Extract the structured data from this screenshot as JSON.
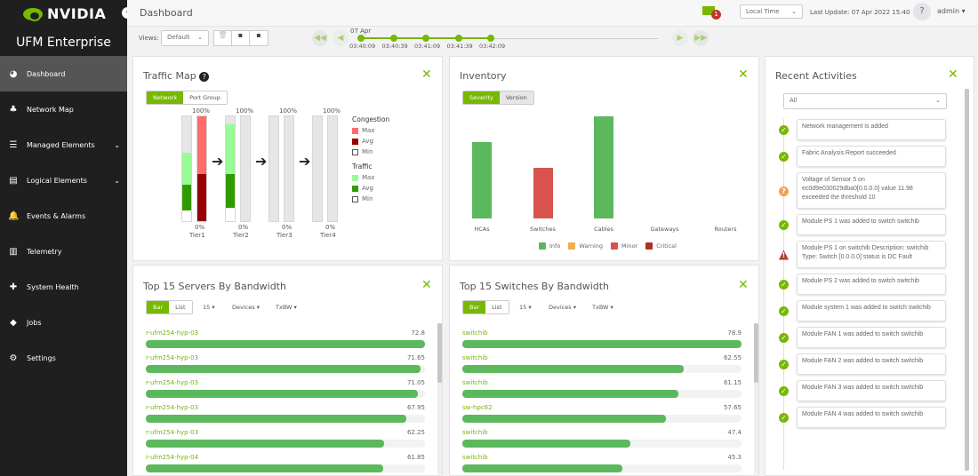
{
  "sidebar": {
    "brand": "NVIDIA",
    "product": "UFM Enterprise",
    "items": [
      {
        "label": "Dashboard",
        "icon": "gauge-icon",
        "active": true
      },
      {
        "label": "Network Map",
        "icon": "sitemap-icon"
      },
      {
        "label": "Managed Elements",
        "icon": "list-check-icon",
        "expandable": true
      },
      {
        "label": "Logical Elements",
        "icon": "server-icon",
        "expandable": true
      },
      {
        "label": "Events & Alarms",
        "icon": "bell-icon"
      },
      {
        "label": "Telemetry",
        "icon": "chart-bar-icon"
      },
      {
        "label": "System Health",
        "icon": "medkit-icon"
      },
      {
        "label": "Jobs",
        "icon": "cube-icon"
      },
      {
        "label": "Settings",
        "icon": "gear-icon"
      }
    ]
  },
  "header": {
    "title": "Dashboard",
    "mail_badge": "1",
    "time_mode": "Local Time",
    "last_update": "Last Update: 07 Apr 2022 15:40",
    "help": "?",
    "user": "admin"
  },
  "toolbar": {
    "views_label": "Views:",
    "views_value": "Default",
    "timeline_date": "07 Apr",
    "timeline_ticks": [
      "03:40:09",
      "03:40:39",
      "03:41:09",
      "03:41:39",
      "03:42:09"
    ]
  },
  "traffic_map": {
    "title": "Traffic Map",
    "tabs": [
      "Network",
      "Port Group"
    ],
    "active_tab": "Network",
    "tiers": [
      {
        "label": "Tier1",
        "top": "100%",
        "bottom": "0%",
        "traffic": {
          "min": 0.1,
          "avg": 0.35,
          "max": 0.65
        },
        "congestion": {
          "min": 0,
          "avg": 0.45,
          "max": 1.0
        }
      },
      {
        "label": "Tier2",
        "top": "100%",
        "bottom": "0%",
        "traffic": {
          "min": 0.13,
          "avg": 0.45,
          "max": 0.92
        },
        "congestion": {
          "min": 0,
          "avg": 0,
          "max": 0
        }
      },
      {
        "label": "Tier3",
        "top": "100%",
        "bottom": "0%",
        "traffic": {
          "min": 0,
          "avg": 0,
          "max": 0
        },
        "congestion": {
          "min": 0,
          "avg": 0,
          "max": 0
        }
      },
      {
        "label": "Tier4",
        "top": "100%",
        "bottom": "0%",
        "traffic": {
          "min": 0,
          "avg": 0,
          "max": 0
        },
        "congestion": {
          "min": 0,
          "avg": 0,
          "max": 0
        }
      }
    ],
    "legend": {
      "congestion_title": "Congestion",
      "traffic_title": "Traffic",
      "max": "Max",
      "avg": "Avg",
      "min": "Min"
    },
    "colors": {
      "cong_max": "#ff6b6b",
      "cong_avg": "#990000",
      "traffic_max": "#98fb98",
      "traffic_avg": "#339900"
    }
  },
  "inventory": {
    "title": "Inventory",
    "tabs": [
      "Severity",
      "Version"
    ],
    "active_tab": "Severity",
    "chart_data": {
      "type": "bar",
      "categories": [
        "HCAs",
        "Switches",
        "Cables",
        "Gateways",
        "Routers"
      ],
      "values": [
        3,
        2,
        4,
        0,
        0
      ],
      "severity": [
        "Info",
        "Minor",
        "Info",
        null,
        null
      ],
      "legend": [
        {
          "name": "Info",
          "color": "#5cb85c"
        },
        {
          "name": "Warning",
          "color": "#f0ad4e"
        },
        {
          "name": "Minor",
          "color": "#d9534f"
        },
        {
          "name": "Critical",
          "color": "#a93226"
        }
      ]
    }
  },
  "servers": {
    "title": "Top 15 Servers By Bandwidth",
    "tabs": [
      "Bar",
      "List"
    ],
    "active_tab": "Bar",
    "count": "15",
    "group": "Devices",
    "metric": "TxBW",
    "rows": [
      {
        "name": "r-ufm254-hyp-03",
        "value": 72.8
      },
      {
        "name": "r-ufm254-hyp-03",
        "value": 71.65
      },
      {
        "name": "r-ufm254-hyp-03",
        "value": 71.05
      },
      {
        "name": "r-ufm254-hyp-03",
        "value": 67.95
      },
      {
        "name": "r-ufm254-hyp-03",
        "value": 62.25
      },
      {
        "name": "r-ufm254-hyp-04",
        "value": 61.85
      }
    ]
  },
  "switches": {
    "title": "Top 15 Switches By Bandwidth",
    "tabs": [
      "Bar",
      "List"
    ],
    "active_tab": "Bar",
    "count": "15",
    "group": "Devices",
    "metric": "TxBW",
    "rows": [
      {
        "name": "switchib",
        "value": 78.9
      },
      {
        "name": "switchib",
        "value": 62.55
      },
      {
        "name": "switchib",
        "value": 61.15
      },
      {
        "name": "sw-hpc62",
        "value": 57.65
      },
      {
        "name": "switchib",
        "value": 47.4
      },
      {
        "name": "switchib",
        "value": 45.3
      }
    ]
  },
  "activities": {
    "title": "Recent Activities",
    "filter": "All",
    "items": [
      {
        "text": "Network management is added",
        "status": "ok"
      },
      {
        "text": "Fabric Analysis Report succeeded",
        "status": "ok"
      },
      {
        "text": "Voltage of Sensor 5 on ec0d9e030029dba0[0.0.0.0] value 11.98 exceeded the threshold 10",
        "status": "warning"
      },
      {
        "text": "Module PS 1 was added to switch switchib",
        "status": "ok"
      },
      {
        "text": "Module PS 1 on switchib Description: switchib Type: Switch [0.0.0.0] status is DC Fault",
        "status": "critical"
      },
      {
        "text": "Module PS 2 was added to switch switchib",
        "status": "ok"
      },
      {
        "text": "Module system 1 was added to switch switchib",
        "status": "ok"
      },
      {
        "text": "Module FAN 1 was added to switch switchib",
        "status": "ok"
      },
      {
        "text": "Module FAN 2 was added to switch switchib",
        "status": "ok"
      },
      {
        "text": "Module FAN 3 was added to switch switchib",
        "status": "ok"
      },
      {
        "text": "Module FAN 4 was added to switch switchib",
        "status": "ok"
      }
    ]
  }
}
